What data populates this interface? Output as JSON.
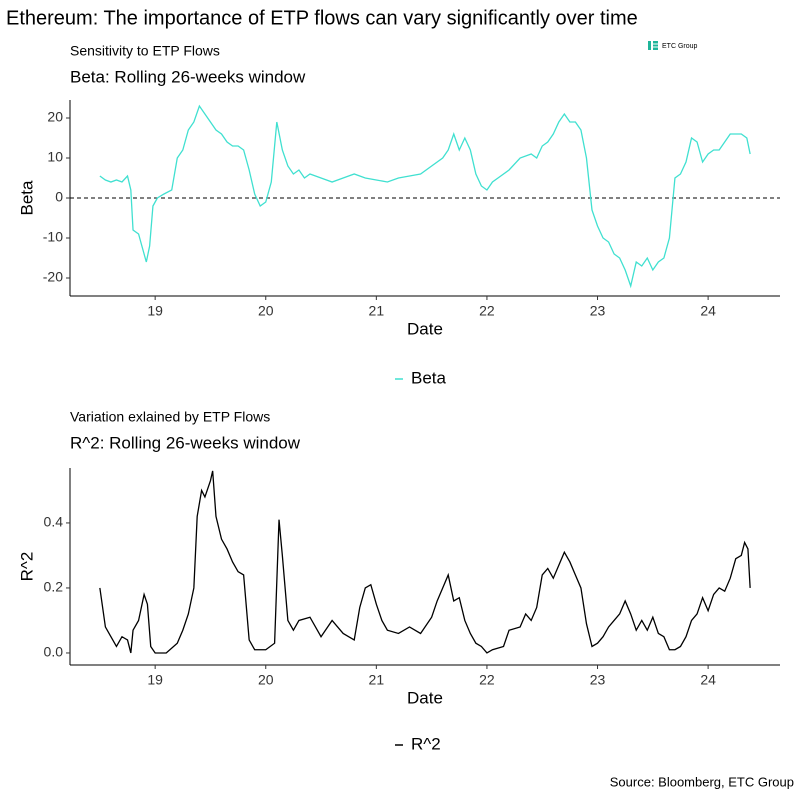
{
  "title": "Ethereum: The importance of ETP flows can vary significantly over time",
  "logo": "ETC Group",
  "source": "Source: Bloomberg, ETC Group",
  "chart_data": [
    {
      "type": "line",
      "subtitle": "Sensitivity to ETP Flows",
      "title": "Beta: Rolling 26-weeks window",
      "x_label": "Date",
      "y_label": "Beta",
      "x": [
        18.5,
        18.55,
        18.6,
        18.65,
        18.7,
        18.75,
        18.78,
        18.8,
        18.85,
        18.88,
        18.92,
        18.95,
        18.98,
        19.02,
        19.08,
        19.15,
        19.2,
        19.25,
        19.3,
        19.35,
        19.4,
        19.45,
        19.5,
        19.55,
        19.6,
        19.65,
        19.7,
        19.75,
        19.8,
        19.85,
        19.9,
        19.95,
        20.0,
        20.05,
        20.1,
        20.15,
        20.2,
        20.25,
        20.3,
        20.35,
        20.4,
        20.5,
        20.6,
        20.7,
        20.8,
        20.9,
        21.0,
        21.1,
        21.2,
        21.3,
        21.4,
        21.5,
        21.6,
        21.65,
        21.7,
        21.75,
        21.8,
        21.85,
        21.9,
        21.95,
        22.0,
        22.05,
        22.1,
        22.2,
        22.3,
        22.4,
        22.45,
        22.5,
        22.55,
        22.6,
        22.65,
        22.7,
        22.75,
        22.8,
        22.85,
        22.9,
        22.95,
        23.0,
        23.05,
        23.1,
        23.15,
        23.2,
        23.25,
        23.3,
        23.35,
        23.4,
        23.45,
        23.5,
        23.55,
        23.6,
        23.65,
        23.7,
        23.75,
        23.8,
        23.85,
        23.9,
        23.95,
        24.0,
        24.05,
        24.1,
        24.15,
        24.2,
        24.3,
        24.35,
        24.38
      ],
      "series": [
        {
          "name": "Beta",
          "color": "#40e0d0",
          "values": [
            5.5,
            4.5,
            4,
            4.5,
            4,
            5.5,
            2,
            -8,
            -9,
            -12,
            -16,
            -12,
            -2,
            0,
            1,
            2,
            10,
            12,
            17,
            19,
            23,
            21,
            19,
            17,
            16,
            14,
            13,
            13,
            12,
            7,
            1,
            -2,
            -1,
            4,
            19,
            12,
            8,
            6,
            7,
            5,
            6,
            5,
            4,
            5,
            6,
            5,
            4.5,
            4,
            5,
            5.5,
            6,
            8,
            10,
            12,
            16,
            12,
            15,
            12,
            6,
            3,
            2,
            4,
            5,
            7,
            10,
            11,
            10,
            13,
            14,
            16,
            19,
            21,
            19,
            19,
            17,
            10,
            -3,
            -7,
            -10,
            -11,
            -14,
            -15,
            -18,
            -22,
            -16,
            -17,
            -15,
            -18,
            -16,
            -15,
            -10,
            5,
            6,
            9,
            15,
            14,
            9,
            11,
            12,
            12,
            14,
            16,
            16,
            15,
            11
          ]
        }
      ],
      "reference_line": 0,
      "xlim": [
        18.23,
        24.65
      ],
      "xticks": [
        19,
        20,
        21,
        22,
        23,
        24
      ],
      "ylim": [
        -24.5,
        24.5
      ],
      "yticks": [
        -20,
        -10,
        0,
        10,
        20
      ]
    },
    {
      "type": "line",
      "subtitle": "Variation exlained by ETP Flows",
      "title": "R^2: Rolling 26-weeks window",
      "x_label": "Date",
      "y_label": "R^2",
      "x": [
        18.5,
        18.55,
        18.6,
        18.65,
        18.7,
        18.75,
        18.78,
        18.8,
        18.85,
        18.9,
        18.93,
        18.96,
        19.0,
        19.1,
        19.2,
        19.25,
        19.3,
        19.35,
        19.38,
        19.42,
        19.45,
        19.5,
        19.52,
        19.55,
        19.6,
        19.65,
        19.7,
        19.75,
        19.8,
        19.85,
        19.9,
        20.0,
        20.08,
        20.12,
        20.15,
        20.2,
        20.25,
        20.3,
        20.4,
        20.5,
        20.6,
        20.7,
        20.8,
        20.85,
        20.9,
        20.95,
        21.0,
        21.05,
        21.1,
        21.2,
        21.3,
        21.4,
        21.5,
        21.55,
        21.6,
        21.65,
        21.7,
        21.75,
        21.8,
        21.85,
        21.9,
        21.95,
        22.0,
        22.05,
        22.15,
        22.2,
        22.3,
        22.35,
        22.4,
        22.45,
        22.5,
        22.55,
        22.6,
        22.65,
        22.7,
        22.75,
        22.8,
        22.85,
        22.9,
        22.95,
        23.0,
        23.05,
        23.1,
        23.15,
        23.2,
        23.25,
        23.3,
        23.35,
        23.4,
        23.45,
        23.5,
        23.55,
        23.6,
        23.65,
        23.7,
        23.75,
        23.8,
        23.85,
        23.9,
        23.95,
        24.0,
        24.05,
        24.1,
        24.15,
        24.2,
        24.25,
        24.3,
        24.33,
        24.36,
        24.38
      ],
      "series": [
        {
          "name": "R^2",
          "color": "#000000",
          "values": [
            0.2,
            0.08,
            0.05,
            0.02,
            0.05,
            0.04,
            0.0,
            0.07,
            0.1,
            0.18,
            0.15,
            0.02,
            0.0,
            0.0,
            0.03,
            0.07,
            0.12,
            0.2,
            0.42,
            0.5,
            0.48,
            0.53,
            0.56,
            0.42,
            0.35,
            0.32,
            0.28,
            0.25,
            0.24,
            0.04,
            0.01,
            0.01,
            0.03,
            0.41,
            0.3,
            0.1,
            0.07,
            0.1,
            0.11,
            0.05,
            0.1,
            0.06,
            0.04,
            0.14,
            0.2,
            0.21,
            0.15,
            0.1,
            0.07,
            0.06,
            0.08,
            0.06,
            0.11,
            0.16,
            0.2,
            0.24,
            0.16,
            0.17,
            0.1,
            0.06,
            0.03,
            0.02,
            0.0,
            0.01,
            0.02,
            0.07,
            0.08,
            0.12,
            0.1,
            0.14,
            0.24,
            0.26,
            0.23,
            0.27,
            0.31,
            0.28,
            0.24,
            0.2,
            0.09,
            0.02,
            0.03,
            0.05,
            0.08,
            0.1,
            0.12,
            0.16,
            0.12,
            0.07,
            0.1,
            0.07,
            0.11,
            0.06,
            0.05,
            0.01,
            0.01,
            0.02,
            0.05,
            0.1,
            0.12,
            0.17,
            0.13,
            0.18,
            0.2,
            0.19,
            0.23,
            0.29,
            0.3,
            0.34,
            0.32,
            0.2
          ]
        }
      ],
      "xlim": [
        18.23,
        24.65
      ],
      "xticks": [
        19,
        20,
        21,
        22,
        23,
        24
      ],
      "ylim": [
        -0.037,
        0.569
      ],
      "yticks": [
        {
          "value": 0,
          "label": "0.0"
        },
        0.2,
        0.4
      ]
    }
  ]
}
